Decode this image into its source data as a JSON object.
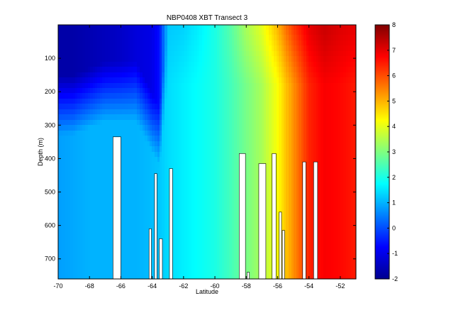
{
  "chart_data": {
    "type": "heatmap",
    "title": "NBP0408 XBT Transect 3",
    "xlabel": "Latitude",
    "ylabel": "Depth (m)",
    "xlim": [
      -70,
      -51
    ],
    "ylim": [
      760,
      0
    ],
    "x_ticks": [
      -70,
      -68,
      -66,
      -64,
      -62,
      -60,
      -58,
      -56,
      -54,
      -52
    ],
    "y_ticks": [
      100,
      200,
      300,
      400,
      500,
      600,
      700
    ],
    "colorbar": {
      "ticks": [
        -2,
        -1,
        0,
        1,
        2,
        3,
        4,
        5,
        6,
        7,
        8
      ],
      "range": [
        -2,
        8
      ],
      "colormap": "jet"
    },
    "field": {
      "description_units": "temperature (°C) by latitude and depth",
      "latitude": [
        -70,
        -69,
        -68,
        -67,
        -66,
        -65,
        -64,
        -63.5,
        -63,
        -62,
        -61,
        -60,
        -59,
        -58,
        -57,
        -56,
        -55,
        -54,
        -53,
        -52,
        -51
      ],
      "surface_values": [
        -1.6,
        -1.6,
        -1.5,
        -1.4,
        -1.3,
        -1.1,
        -1.0,
        -0.6,
        1.2,
        1.3,
        1.6,
        2.0,
        2.6,
        3.4,
        4.0,
        5.0,
        6.2,
        7.0,
        7.3,
        7.1,
        7.0
      ],
      "deep_values": [
        0.8,
        0.9,
        1.0,
        1.0,
        1.0,
        1.0,
        1.1,
        1.2,
        1.4,
        1.6,
        1.8,
        2.0,
        2.4,
        2.9,
        3.4,
        4.2,
        5.3,
        6.4,
        6.8,
        6.7,
        6.5
      ],
      "cold_layer_depth": [
        150,
        150,
        130,
        110,
        110,
        110,
        200,
        250,
        0,
        0,
        0,
        0,
        0,
        0,
        0,
        0,
        0,
        0,
        0,
        0,
        0
      ]
    },
    "missing_data_gaps": [
      {
        "lat_start": -66.5,
        "lat_end": -66.0,
        "depth_start": 335
      },
      {
        "lat_start": -64.2,
        "lat_end": -64.05,
        "depth_start": 610
      },
      {
        "lat_start": -63.85,
        "lat_end": -63.7,
        "depth_start": 445
      },
      {
        "lat_start": -63.55,
        "lat_end": -63.35,
        "depth_start": 640
      },
      {
        "lat_start": -62.9,
        "lat_end": -62.7,
        "depth_start": 430
      },
      {
        "lat_start": -58.45,
        "lat_end": -58.05,
        "depth_start": 385
      },
      {
        "lat_start": -57.95,
        "lat_end": -57.8,
        "depth_start": 740
      },
      {
        "lat_start": -57.2,
        "lat_end": -56.75,
        "depth_start": 415
      },
      {
        "lat_start": -56.35,
        "lat_end": -56.1,
        "depth_start": 385
      },
      {
        "lat_start": -55.9,
        "lat_end": -55.75,
        "depth_start": 560
      },
      {
        "lat_start": -55.7,
        "lat_end": -55.55,
        "depth_start": 615
      },
      {
        "lat_start": -54.4,
        "lat_end": -54.2,
        "depth_start": 410
      },
      {
        "lat_start": -53.7,
        "lat_end": -53.45,
        "depth_start": 410
      }
    ]
  }
}
